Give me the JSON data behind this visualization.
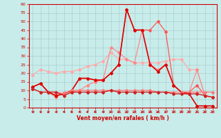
{
  "xlabel": "Vent moyen/en rafales ( km/h )",
  "bg_color": "#c8ecea",
  "grid_color": "#aacfcf",
  "xlim": [
    -0.5,
    23.5
  ],
  "ylim": [
    0,
    60
  ],
  "yticks": [
    0,
    5,
    10,
    15,
    20,
    25,
    30,
    35,
    40,
    45,
    50,
    55,
    60
  ],
  "xticks": [
    0,
    1,
    2,
    3,
    4,
    5,
    6,
    7,
    8,
    9,
    10,
    11,
    12,
    13,
    14,
    15,
    16,
    17,
    18,
    19,
    20,
    21,
    22,
    23
  ],
  "series": [
    {
      "color": "#ffaaaa",
      "linewidth": 0.9,
      "marker": "D",
      "markersize": 2,
      "y": [
        19,
        22,
        21,
        20,
        21,
        21,
        22,
        24,
        25,
        27,
        32,
        28,
        28,
        26,
        26,
        26,
        26,
        27,
        28,
        28,
        22,
        22,
        7,
        6
      ]
    },
    {
      "color": "#ff8888",
      "linewidth": 0.9,
      "marker": "D",
      "markersize": 2,
      "y": [
        12,
        14,
        9,
        6,
        9,
        9,
        10,
        13,
        15,
        16,
        35,
        32,
        28,
        26,
        45,
        25,
        22,
        25,
        13,
        9,
        9,
        22,
        7,
        6
      ]
    },
    {
      "color": "#ff5555",
      "linewidth": 0.9,
      "marker": "D",
      "markersize": 2,
      "y": [
        12,
        14,
        9,
        7,
        8,
        10,
        17,
        17,
        16,
        16,
        20,
        25,
        57,
        45,
        45,
        45,
        50,
        44,
        13,
        9,
        9,
        13,
        7,
        6
      ]
    },
    {
      "color": "#dd0000",
      "linewidth": 1.2,
      "marker": "D",
      "markersize": 2,
      "y": [
        12,
        14,
        9,
        7,
        8,
        10,
        17,
        17,
        16,
        16,
        20,
        25,
        57,
        45,
        45,
        25,
        21,
        25,
        13,
        9,
        8,
        1,
        1,
        1
      ]
    },
    {
      "color": "#ff7777",
      "linewidth": 0.9,
      "marker": "D",
      "markersize": 2,
      "y": [
        11,
        9,
        9,
        9,
        8,
        10,
        10,
        10,
        10,
        10,
        10,
        10,
        10,
        10,
        10,
        10,
        9,
        9,
        9,
        9,
        9,
        9,
        9,
        9
      ]
    },
    {
      "color": "#cc2222",
      "linewidth": 1.0,
      "marker": "D",
      "markersize": 2,
      "y": [
        11,
        9,
        9,
        9,
        7,
        9,
        9,
        9,
        9,
        9,
        10,
        9,
        9,
        9,
        9,
        9,
        9,
        9,
        8,
        8,
        8,
        8,
        7,
        6
      ]
    }
  ],
  "arrow_angles": [
    225,
    225,
    210,
    200,
    195,
    190,
    185,
    180,
    175,
    170,
    165,
    160,
    155,
    150,
    145,
    145,
    150,
    155,
    160,
    165,
    170,
    175,
    180,
    185
  ]
}
